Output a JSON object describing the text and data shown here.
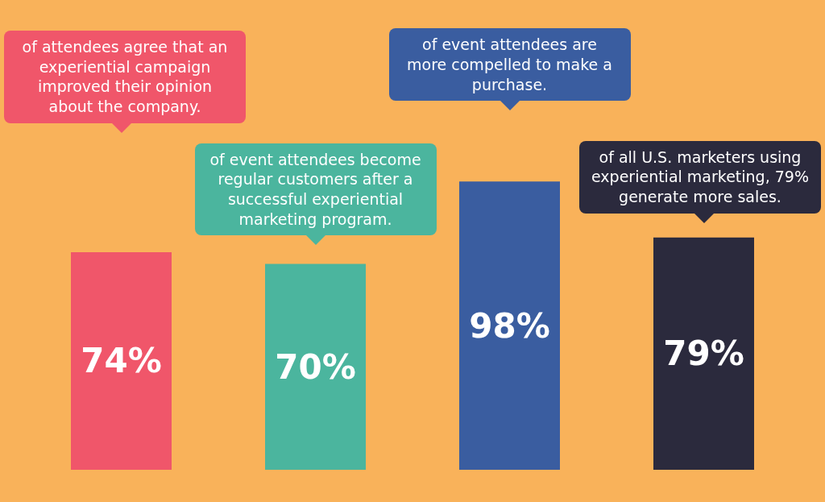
{
  "chart_data": {
    "type": "bar",
    "categories": [
      null,
      null,
      null,
      null
    ],
    "values": [
      74,
      70,
      98,
      79
    ],
    "colors": [
      "#f0566a",
      "#4bb59e",
      "#3a5da0",
      "#2b2a3d"
    ],
    "value_labels": [
      "74%",
      "70%",
      "98%",
      "79%"
    ],
    "annotations": [
      "of attendees agree that an experiential campaign improved their opinion about the company.",
      "of event attendees become regular customers after a successful experiential marketing program.",
      "of event attendees are more compelled to make a purchase.",
      "of all U.S. marketers using experiential marketing, 79% generate more sales."
    ]
  }
}
